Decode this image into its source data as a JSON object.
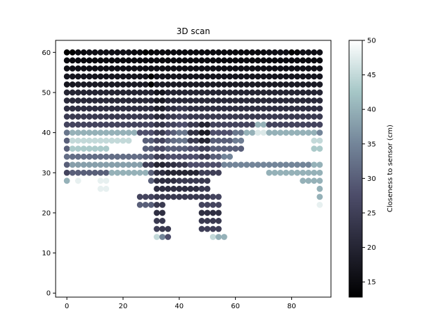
{
  "chart_data": {
    "type": "scatter",
    "title": "3D scan",
    "xlabel": "",
    "ylabel": "",
    "xlim": [
      -4,
      94
    ],
    "ylim": [
      -1,
      63
    ],
    "x_ticks": [
      0,
      20,
      40,
      60,
      80
    ],
    "y_ticks": [
      0,
      10,
      20,
      30,
      40,
      50,
      60
    ],
    "grid": false,
    "legend": "none",
    "colorbar": {
      "label": "Closeness to sensor (cm)",
      "range": [
        12.8,
        50
      ],
      "ticks": [
        15,
        20,
        25,
        30,
        35,
        40,
        45,
        50
      ],
      "colormap": "bone",
      "stops": [
        "#000000",
        "#262635",
        "#4d4d6a",
        "#74869a",
        "#a6c7c7",
        "#ffffff"
      ]
    },
    "grid_x_step": 2,
    "rows": [
      {
        "y": 60,
        "values": [
          13,
          13,
          15,
          15,
          16,
          16,
          16,
          16,
          16,
          16,
          16,
          16,
          15,
          15,
          13,
          14,
          15,
          15,
          15,
          15,
          15,
          15,
          15,
          15,
          15,
          15,
          15,
          15,
          15,
          15,
          15,
          15,
          15,
          15,
          15,
          15,
          16,
          16,
          16,
          16,
          13,
          14,
          16,
          16,
          16,
          16
        ]
      },
      {
        "y": 58,
        "values": [
          15,
          15,
          15,
          15,
          15,
          15,
          15,
          15,
          15,
          15,
          15,
          15,
          15,
          15,
          15,
          15,
          15,
          15,
          15,
          15,
          15,
          15,
          15,
          15,
          15,
          15,
          15,
          15,
          15,
          15,
          15,
          15,
          15,
          15,
          15,
          15,
          15,
          15,
          15,
          15,
          15,
          15,
          15,
          15,
          15,
          15
        ]
      },
      {
        "y": 56,
        "values": [
          16,
          16,
          16,
          16,
          16,
          16,
          16,
          16,
          16,
          16,
          16,
          16,
          16,
          16,
          16,
          16,
          16,
          16,
          16,
          16,
          16,
          16,
          16,
          16,
          16,
          16,
          16,
          16,
          16,
          16,
          16,
          16,
          16,
          16,
          16,
          16,
          16,
          16,
          16,
          16,
          16,
          16,
          16,
          16,
          16,
          16
        ]
      },
      {
        "y": 54,
        "values": [
          17,
          17,
          17,
          17,
          17,
          17,
          17,
          17,
          17,
          17,
          17,
          17,
          17,
          17,
          17,
          13,
          17,
          17,
          17,
          17,
          17,
          17,
          17,
          17,
          17,
          17,
          17,
          17,
          17,
          17,
          17,
          17,
          17,
          17,
          17,
          17,
          17,
          17,
          17,
          17,
          17,
          17,
          17,
          17,
          17,
          17
        ]
      },
      {
        "y": 52,
        "values": [
          17,
          17,
          18,
          18,
          18,
          18,
          18,
          18,
          18,
          18,
          18,
          18,
          18,
          18,
          18,
          13,
          18,
          18,
          18,
          18,
          18,
          18,
          18,
          18,
          18,
          18,
          18,
          18,
          18,
          18,
          18,
          18,
          18,
          18,
          18,
          18,
          18,
          18,
          18,
          18,
          18,
          18,
          18,
          18,
          18,
          18
        ]
      },
      {
        "y": 50,
        "values": [
          20,
          20,
          20,
          20,
          20,
          20,
          20,
          20,
          20,
          20,
          20,
          20,
          20,
          20,
          20,
          20,
          17,
          17,
          20,
          20,
          20,
          20,
          20,
          20,
          20,
          20,
          20,
          20,
          20,
          20,
          20,
          20,
          20,
          20,
          20,
          20,
          20,
          20,
          20,
          20,
          20,
          20,
          20,
          20,
          20,
          20
        ]
      },
      {
        "y": 48,
        "values": [
          21,
          21,
          21,
          21,
          21,
          21,
          21,
          21,
          21,
          21,
          21,
          21,
          21,
          21,
          21,
          21,
          18,
          18,
          21,
          21,
          21,
          21,
          21,
          21,
          21,
          21,
          21,
          21,
          21,
          21,
          21,
          21,
          21,
          21,
          21,
          21,
          21,
          21,
          21,
          21,
          21,
          21,
          21,
          21,
          21,
          21
        ]
      },
      {
        "y": 46,
        "values": [
          22,
          22,
          22,
          22,
          22,
          22,
          22,
          22,
          22,
          22,
          22,
          22,
          22,
          22,
          22,
          22,
          19,
          19,
          22,
          22,
          24,
          24,
          22,
          22,
          22,
          22,
          22,
          22,
          22,
          22,
          22,
          22,
          22,
          22,
          22,
          22,
          22,
          22,
          22,
          22,
          22,
          22,
          22,
          22,
          22,
          22
        ]
      },
      {
        "y": 44,
        "values": [
          24,
          24,
          24,
          24,
          24,
          24,
          24,
          24,
          24,
          24,
          24,
          24,
          24,
          24,
          24,
          24,
          21,
          21,
          24,
          24,
          26,
          26,
          24,
          24,
          24,
          24,
          24,
          24,
          24,
          24,
          24,
          24,
          24,
          24,
          24,
          24,
          24,
          24,
          24,
          24,
          24,
          24,
          24,
          24,
          24,
          24
        ]
      },
      {
        "y": 42,
        "values": [
          26,
          26,
          26,
          26,
          26,
          26,
          26,
          26,
          26,
          26,
          26,
          26,
          26,
          26,
          26,
          26,
          23,
          23,
          26,
          26,
          28,
          28,
          24,
          24,
          20,
          20,
          26,
          26,
          26,
          26,
          26,
          26,
          26,
          26,
          40,
          40,
          26,
          26,
          26,
          26,
          26,
          26,
          26,
          26,
          26,
          26
        ]
      },
      {
        "y": 40,
        "values": [
          33,
          40,
          40,
          40,
          40,
          40,
          40,
          40,
          40,
          40,
          40,
          40,
          40,
          28,
          28,
          28,
          24,
          24,
          28,
          30,
          33,
          33,
          22,
          22,
          18,
          18,
          28,
          28,
          28,
          28,
          33,
          33,
          40,
          40,
          47,
          47,
          40,
          40,
          40,
          40,
          40,
          40,
          40,
          40,
          40,
          35
        ]
      },
      {
        "y": 38,
        "values": [
          30,
          45,
          45,
          45,
          45,
          45,
          45,
          45,
          45,
          45,
          45,
          45,
          null,
          null,
          30,
          30,
          26,
          26,
          30,
          32,
          33,
          33,
          24,
          24,
          20,
          20,
          30,
          30,
          30,
          30,
          34,
          34,
          null,
          null,
          null,
          null,
          null,
          null,
          null,
          null,
          null,
          null,
          null,
          null,
          45,
          45
        ]
      },
      {
        "y": 36,
        "values": [
          30,
          43,
          43,
          43,
          43,
          43,
          43,
          43,
          null,
          null,
          null,
          null,
          null,
          null,
          30,
          30,
          27,
          27,
          30,
          30,
          30,
          30,
          28,
          28,
          25,
          25,
          30,
          30,
          30,
          30,
          30,
          30,
          null,
          null,
          null,
          null,
          null,
          null,
          null,
          null,
          null,
          null,
          null,
          null,
          43,
          43
        ]
      },
      {
        "y": 34,
        "values": [
          32,
          32,
          32,
          32,
          32,
          32,
          32,
          32,
          32,
          32,
          32,
          32,
          32,
          32,
          30,
          30,
          25,
          25,
          28,
          28,
          28,
          28,
          28,
          28,
          25,
          25,
          30,
          30,
          35,
          35,
          null,
          null,
          null,
          null,
          null,
          null,
          null,
          null,
          null,
          null,
          null,
          null,
          null,
          null,
          null,
          null
        ]
      },
      {
        "y": 32,
        "values": [
          30,
          38,
          38,
          38,
          38,
          38,
          38,
          38,
          38,
          38,
          38,
          38,
          38,
          38,
          25,
          25,
          20,
          20,
          22,
          22,
          24,
          24,
          28,
          28,
          28,
          28,
          28,
          28,
          35,
          35,
          35,
          35,
          35,
          35,
          35,
          35,
          35,
          35,
          35,
          35,
          35,
          35,
          35,
          35,
          40,
          40
        ]
      },
      {
        "y": 30,
        "values": [
          26,
          30,
          30,
          30,
          30,
          30,
          30,
          30,
          40,
          40,
          40,
          40,
          40,
          40,
          40,
          30,
          22,
          22,
          20,
          20,
          20,
          20,
          20,
          20,
          25,
          25,
          25,
          25,
          null,
          null,
          null,
          null,
          null,
          null,
          null,
          null,
          40,
          40,
          40,
          40,
          40,
          40,
          40,
          40,
          40,
          40
        ]
      },
      {
        "y": 28,
        "values": [
          40,
          null,
          48,
          null,
          null,
          null,
          48,
          48,
          null,
          null,
          null,
          null,
          null,
          null,
          null,
          30,
          22,
          22,
          22,
          22,
          24,
          24,
          24,
          24,
          24,
          24,
          null,
          null,
          null,
          null,
          null,
          null,
          null,
          null,
          null,
          null,
          null,
          null,
          null,
          null,
          null,
          null,
          40,
          40,
          40,
          40
        ]
      },
      {
        "y": 26,
        "values": [
          null,
          null,
          null,
          null,
          null,
          null,
          48,
          48,
          null,
          null,
          null,
          null,
          null,
          null,
          null,
          null,
          22,
          22,
          22,
          22,
          22,
          22,
          22,
          22,
          24,
          24,
          null,
          null,
          null,
          null,
          null,
          null,
          null,
          null,
          null,
          null,
          null,
          null,
          null,
          null,
          null,
          null,
          null,
          null,
          null,
          40
        ]
      },
      {
        "y": 24,
        "values": [
          null,
          null,
          null,
          null,
          null,
          null,
          null,
          null,
          null,
          null,
          null,
          null,
          null,
          26,
          26,
          26,
          24,
          24,
          24,
          24,
          24,
          24,
          24,
          24,
          24,
          24,
          26,
          26,
          null,
          null,
          null,
          null,
          null,
          null,
          null,
          null,
          null,
          null,
          null,
          null,
          null,
          null,
          null,
          null,
          null,
          40
        ]
      },
      {
        "y": 22,
        "values": [
          null,
          null,
          null,
          null,
          null,
          null,
          null,
          null,
          null,
          null,
          null,
          null,
          null,
          30,
          30,
          30,
          24,
          24,
          null,
          null,
          null,
          null,
          null,
          null,
          26,
          26,
          26,
          26,
          null,
          null,
          null,
          null,
          null,
          null,
          null,
          null,
          null,
          null,
          null,
          null,
          null,
          null,
          null,
          null,
          null,
          48
        ]
      },
      {
        "y": 20,
        "values": [
          null,
          null,
          null,
          null,
          null,
          null,
          null,
          null,
          null,
          null,
          null,
          null,
          null,
          null,
          null,
          null,
          22,
          22,
          null,
          null,
          null,
          null,
          null,
          null,
          22,
          22,
          22,
          22,
          null,
          null,
          null,
          null,
          null,
          null,
          null,
          null,
          null,
          null,
          null,
          null,
          null,
          null,
          null,
          null,
          null,
          null
        ]
      },
      {
        "y": 18,
        "values": [
          null,
          null,
          null,
          null,
          null,
          null,
          null,
          null,
          null,
          null,
          null,
          null,
          null,
          null,
          null,
          null,
          24,
          24,
          null,
          null,
          null,
          null,
          null,
          null,
          24,
          24,
          24,
          24,
          null,
          null,
          null,
          null,
          null,
          null,
          null,
          null,
          null,
          null,
          null,
          null,
          null,
          null,
          null,
          null,
          null,
          null
        ]
      },
      {
        "y": 16,
        "values": [
          null,
          null,
          null,
          null,
          null,
          null,
          null,
          null,
          null,
          null,
          null,
          null,
          null,
          null,
          null,
          null,
          25,
          24,
          24,
          null,
          null,
          null,
          null,
          null,
          25,
          25,
          25,
          25,
          null,
          null,
          null,
          null,
          null,
          null,
          null,
          null,
          null,
          null,
          null,
          null,
          null,
          null,
          null,
          null,
          null,
          null
        ]
      },
      {
        "y": 14,
        "values": [
          null,
          null,
          null,
          null,
          null,
          null,
          null,
          null,
          null,
          null,
          null,
          null,
          null,
          null,
          null,
          null,
          45,
          35,
          28,
          null,
          null,
          null,
          null,
          null,
          null,
          null,
          45,
          40,
          40,
          null,
          null,
          null,
          null,
          null,
          null,
          null,
          null,
          null,
          null,
          null,
          null,
          null,
          null,
          null,
          null,
          null
        ]
      }
    ]
  }
}
